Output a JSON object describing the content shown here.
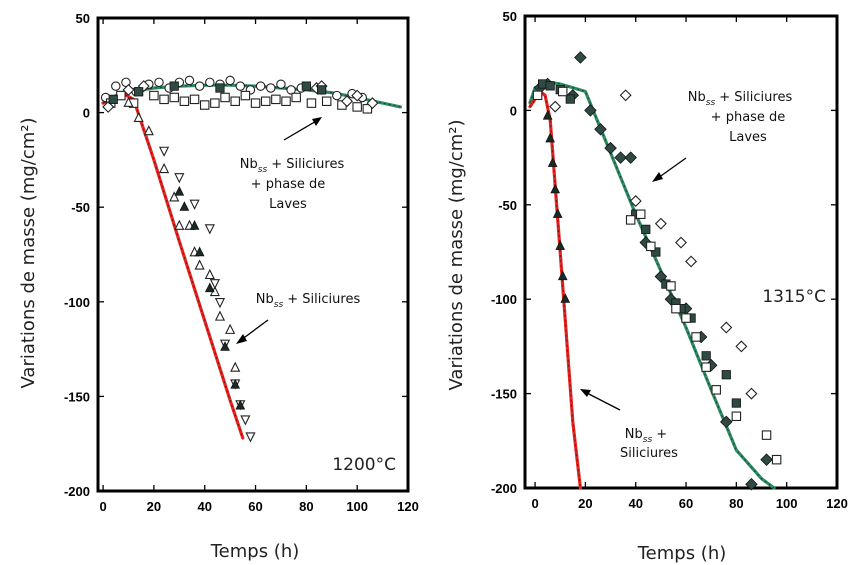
{
  "chart_data": [
    {
      "type": "scatter",
      "xlabel": "Temps (h)",
      "ylabel": "Variations de masse (mg/cm²)",
      "xlim": [
        -2,
        120
      ],
      "ylim": [
        -200,
        50
      ],
      "xticks": [
        0,
        20,
        40,
        60,
        80,
        100,
        120
      ],
      "yticks": [
        50,
        0,
        -50,
        -100,
        -150,
        -200
      ],
      "temperature": "1200°C",
      "annotations": [
        {
          "lines": [
            "Nb",
            "ss",
            " + Siliciures",
            "+ phase de",
            "Laves"
          ]
        },
        {
          "lines": [
            "Nb",
            "ss",
            " + Siliciures"
          ]
        }
      ],
      "series": [
        {
          "id": "laves-open-circle",
          "marker": "circle-open",
          "x": [
            1,
            5,
            9,
            13,
            18,
            22,
            26,
            30,
            34,
            38,
            42,
            46,
            50,
            54,
            58,
            62,
            66,
            70,
            74,
            78,
            86,
            92,
            98,
            102
          ],
          "y": [
            8,
            14,
            16,
            11,
            15,
            16,
            13,
            16,
            17,
            14,
            16,
            15,
            17,
            14,
            12,
            14,
            13,
            15,
            12,
            13,
            12,
            9,
            10,
            8
          ]
        },
        {
          "id": "laves-open-square",
          "marker": "square-open",
          "x": [
            3,
            7,
            12,
            20,
            24,
            28,
            32,
            36,
            40,
            44,
            48,
            52,
            56,
            60,
            64,
            68,
            72,
            76,
            82,
            88,
            94,
            100,
            104
          ],
          "y": [
            5,
            9,
            5,
            9,
            7,
            8,
            6,
            7,
            4,
            5,
            8,
            6,
            9,
            5,
            6,
            7,
            6,
            8,
            5,
            6,
            4,
            3,
            2
          ]
        },
        {
          "id": "laves-open-diamond",
          "marker": "diamond-open",
          "x": [
            2,
            10,
            16,
            84,
            86,
            96,
            100,
            106
          ],
          "y": [
            3,
            12,
            14,
            13,
            14,
            6,
            9,
            5
          ]
        },
        {
          "id": "laves-filled-square",
          "marker": "square-filled",
          "x": [
            4,
            14,
            28,
            46,
            80,
            86
          ],
          "y": [
            7,
            11,
            14,
            13,
            14,
            12
          ]
        },
        {
          "id": "si-up-triangle",
          "marker": "triangle-up-open",
          "x": [
            10,
            14,
            18,
            24,
            28,
            30,
            34,
            36,
            38,
            42,
            44,
            46,
            50,
            52
          ],
          "y": [
            5,
            -3,
            -10,
            -30,
            -45,
            -60,
            -60,
            -74,
            -81,
            -86,
            -95,
            -108,
            -115,
            -135
          ]
        },
        {
          "id": "si-down-triangle",
          "marker": "triangle-down-open",
          "x": [
            24,
            30,
            36,
            42,
            44,
            46,
            48,
            52,
            54,
            56,
            58
          ],
          "y": [
            -20,
            -34,
            -48,
            -61,
            -90,
            -100,
            -122,
            -143,
            -154,
            -162,
            -171
          ]
        },
        {
          "id": "si-filled-triangle",
          "marker": "triangle-up-filled",
          "x": [
            30,
            32,
            36,
            38,
            42,
            48,
            52,
            54
          ],
          "y": [
            -42,
            -50,
            -60,
            -74,
            -93,
            -124,
            -144,
            -155
          ]
        }
      ],
      "fits": [
        {
          "id": "fit-laves",
          "color": "#2e8b62",
          "x": [
            0,
            5,
            10,
            20,
            30,
            40,
            50,
            60,
            70,
            80,
            90,
            100,
            110,
            117
          ],
          "y": [
            5,
            9,
            11,
            13,
            14,
            14.5,
            14.5,
            14,
            13,
            12,
            10.5,
            8,
            5,
            3
          ]
        },
        {
          "id": "fit-siliciures",
          "color": "#e8231f",
          "x": [
            0,
            4,
            8,
            12,
            20,
            30,
            40,
            50,
            55
          ],
          "y": [
            5,
            8,
            10,
            7,
            -25,
            -68,
            -110,
            -152,
            -172
          ]
        }
      ]
    },
    {
      "type": "scatter",
      "xlabel": "Temps (h)",
      "ylabel": "Variations de masse (mg/cm²)",
      "xlim": [
        -4,
        120
      ],
      "ylim": [
        -200,
        50
      ],
      "xticks": [
        0,
        20,
        40,
        60,
        80,
        100,
        120
      ],
      "yticks": [
        50,
        0,
        -50,
        -100,
        -150,
        -200
      ],
      "temperature": "1315°C",
      "annotations": [
        {
          "lines": [
            "Nb",
            "ss",
            " + Siliciures",
            "+ phase de",
            "Laves"
          ]
        },
        {
          "lines": [
            "Nb",
            "ss",
            " +",
            "Siliciures"
          ]
        }
      ],
      "series": [
        {
          "id": "laves-filled-diamond",
          "marker": "diamond-filled",
          "x": [
            2,
            5,
            15,
            18,
            22,
            26,
            30,
            34,
            38,
            44,
            50,
            54,
            60,
            66,
            70,
            76,
            86,
            92
          ],
          "y": [
            12,
            14,
            8,
            28,
            0,
            -10,
            -20,
            -25,
            -25,
            -70,
            -88,
            -100,
            -105,
            -120,
            -135,
            -165,
            -198,
            -185
          ]
        },
        {
          "id": "laves-open-diamond",
          "marker": "diamond-open",
          "x": [
            8,
            36,
            40,
            50,
            58,
            62,
            76,
            82,
            86
          ],
          "y": [
            2,
            8,
            -48,
            -60,
            -70,
            -80,
            -115,
            -125,
            -150
          ]
        },
        {
          "id": "laves-filled-square",
          "marker": "square-filled",
          "x": [
            3,
            6,
            10,
            14,
            40,
            44,
            48,
            52,
            56,
            58,
            62,
            68,
            76,
            80
          ],
          "y": [
            14,
            13,
            11,
            6,
            -55,
            -63,
            -75,
            -92,
            -102,
            -105,
            -110,
            -130,
            -140,
            -155
          ]
        },
        {
          "id": "laves-open-square",
          "marker": "square-open",
          "x": [
            1,
            11,
            38,
            42,
            46,
            54,
            56,
            60,
            64,
            68,
            72,
            80,
            92,
            96
          ],
          "y": [
            8,
            10,
            -58,
            -55,
            -72,
            -93,
            -105,
            -110,
            -120,
            -136,
            -148,
            -162,
            -172,
            -185
          ]
        },
        {
          "id": "si-filled-triangle",
          "marker": "triangle-up-filled",
          "x": [
            5,
            6,
            7,
            8,
            9,
            10,
            11,
            12
          ],
          "y": [
            -3,
            -15,
            -28,
            -42,
            -55,
            -72,
            -88,
            -100
          ]
        }
      ],
      "fits": [
        {
          "id": "fit-laves",
          "color": "#2e8b62",
          "x": [
            -2,
            0,
            5,
            10,
            15,
            20,
            40,
            60,
            70,
            80,
            90,
            95
          ],
          "y": [
            4,
            12,
            15,
            14,
            12,
            10,
            -55,
            -115,
            -148,
            -180,
            -195,
            -200
          ]
        },
        {
          "id": "fit-siliciures",
          "color": "#e8231f",
          "x": [
            -2,
            0,
            2,
            4,
            6,
            10,
            15,
            18
          ],
          "y": [
            2,
            6,
            10,
            8,
            -5,
            -75,
            -165,
            -200
          ]
        }
      ]
    }
  ],
  "panels": [
    {
      "temperature": "1200°C",
      "anno_laves": {
        "prefix": "Nb",
        "sub": "ss",
        "suffix": " + Siliciures",
        "line2": "+ phase de",
        "line3": "Laves"
      },
      "anno_si": {
        "prefix": "Nb",
        "sub": "ss",
        "suffix": " + Siliciures"
      }
    },
    {
      "temperature": "1315°C",
      "anno_laves": {
        "prefix": "Nb",
        "sub": "ss",
        "suffix": " + Siliciures",
        "line2": "+ phase de",
        "line3": "Laves"
      },
      "anno_si": {
        "prefix": "Nb",
        "sub": "ss",
        "suffix": " +",
        "line2": "Siliciures"
      }
    }
  ],
  "axes": {
    "xlabel": "Temps (h)",
    "ylabel": "Variations de masse (mg/cm²)"
  }
}
